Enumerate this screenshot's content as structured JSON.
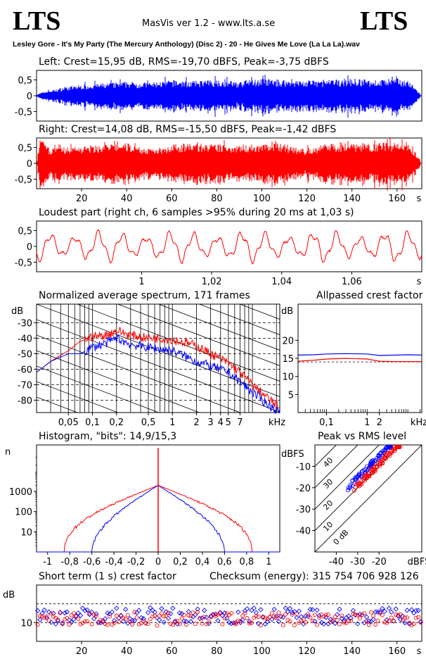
{
  "header": {
    "logo_left": "LTS",
    "logo_right": "LTS",
    "app_title": "MasVis ver 1.2 - www.lts.a.se",
    "filename": "Lesley Gore - It's My Party (The Mercury Anthology) (Disc 2) - 20 - He Gives Me Love (La La La).wav"
  },
  "colors": {
    "left": "#0000ff",
    "right": "#ff0000",
    "axis": "#000000"
  },
  "chart_data": [
    {
      "id": "left-waveform",
      "type": "area",
      "title": "Left: Crest=15,95 dB, RMS=-19,70 dBFS, Peak=-3,75 dBFS",
      "yticks": [
        0.5,
        0,
        -0.5
      ],
      "ytick_labels": [
        "0,5",
        "0",
        "-0,5"
      ],
      "ylim": [
        -0.8,
        0.8
      ],
      "xlim": [
        0,
        171
      ],
      "envelope": {
        "t": [
          0,
          4,
          8,
          12,
          20,
          30,
          40,
          50,
          60,
          70,
          80,
          90,
          100,
          110,
          120,
          130,
          140,
          150,
          160,
          165,
          169,
          171
        ],
        "amp": [
          0.05,
          0.15,
          0.2,
          0.28,
          0.35,
          0.4,
          0.45,
          0.42,
          0.5,
          0.47,
          0.52,
          0.45,
          0.55,
          0.5,
          0.48,
          0.5,
          0.55,
          0.5,
          0.55,
          0.5,
          0.2,
          0.02
        ]
      }
    },
    {
      "id": "right-waveform",
      "type": "area",
      "title": "Right: Crest=14,08 dB, RMS=-15,50 dBFS, Peak=-1,42 dBFS",
      "yticks": [
        0.5,
        0,
        -0.5
      ],
      "ytick_labels": [
        "0,5",
        "0",
        "-0,5"
      ],
      "ylim": [
        -0.8,
        0.8
      ],
      "xlim": [
        0,
        171
      ],
      "xticks": [
        20,
        40,
        60,
        80,
        100,
        120,
        140,
        160
      ],
      "xtick_labels": [
        "20",
        "40",
        "60",
        "80",
        "100",
        "120",
        "140",
        "160"
      ],
      "xunit": "s",
      "envelope": {
        "t": [
          0,
          1,
          5,
          10,
          20,
          30,
          40,
          45,
          50,
          60,
          70,
          80,
          90,
          100,
          110,
          115,
          120,
          130,
          140,
          150,
          160,
          165,
          169,
          171
        ],
        "amp": [
          0.1,
          0.8,
          0.5,
          0.5,
          0.55,
          0.6,
          0.65,
          0.55,
          0.45,
          0.6,
          0.65,
          0.6,
          0.6,
          0.62,
          0.65,
          0.5,
          0.45,
          0.65,
          0.65,
          0.65,
          0.68,
          0.7,
          0.3,
          0.02
        ]
      }
    },
    {
      "id": "loudest-part",
      "type": "line",
      "title": "Loudest part (right ch, 6 samples >95% during 20 ms at 1,03 s)",
      "yticks": [
        0.5,
        0,
        -0.5
      ],
      "ytick_labels": [
        "0,5",
        "0",
        "-0,5"
      ],
      "ylim": [
        -0.8,
        0.8
      ],
      "xlim": [
        0.97,
        1.08
      ],
      "xticks": [
        1,
        1.02,
        1.04,
        1.06
      ],
      "xtick_labels": [
        "1",
        "1,02",
        "1,04",
        "1,06"
      ],
      "xunit": "s",
      "signal": {
        "x_start": 0.97,
        "x_end": 1.08,
        "period": 0.0068,
        "amplitude": 0.55
      }
    },
    {
      "id": "avg-spectrum",
      "type": "line",
      "title": "Normalized average spectrum, 171 frames",
      "ylabel": "dB",
      "yticks": [
        -30,
        -40,
        -50,
        -60,
        -70,
        -80
      ],
      "ytick_labels": [
        "-30",
        "-40",
        "-50",
        "-60",
        "-70",
        "-80"
      ],
      "ylim": [
        -88,
        -18
      ],
      "xscale": "log",
      "xlim": [
        0.02,
        22
      ],
      "xticks": [
        0.05,
        0.1,
        0.2,
        0.5,
        1,
        2,
        3,
        4,
        5,
        7
      ],
      "xtick_labels": [
        "0,05",
        "0,1",
        "0,2",
        "0,5",
        "1",
        "2",
        "3",
        "4",
        "5",
        "7"
      ],
      "xunit": "kHz",
      "series": [
        {
          "color": "#ff0000",
          "x": [
            0.02,
            0.03,
            0.05,
            0.07,
            0.1,
            0.15,
            0.2,
            0.3,
            0.5,
            0.7,
            1,
            1.5,
            2,
            3,
            5,
            7,
            10,
            15,
            22
          ],
          "y": [
            -62,
            -55,
            -48,
            -42,
            -39,
            -38,
            -35,
            -38,
            -40,
            -40,
            -41,
            -43,
            -45,
            -50,
            -56,
            -62,
            -70,
            -78,
            -85
          ]
        },
        {
          "color": "#0000ff",
          "x": [
            0.02,
            0.03,
            0.05,
            0.07,
            0.1,
            0.15,
            0.2,
            0.3,
            0.5,
            0.7,
            1,
            1.5,
            2,
            3,
            5,
            7,
            10,
            15,
            22
          ],
          "y": [
            -62,
            -55,
            -50,
            -50,
            -46,
            -43,
            -40,
            -44,
            -46,
            -47,
            -48,
            -52,
            -55,
            -58,
            -62,
            -68,
            -75,
            -82,
            -88
          ]
        }
      ]
    },
    {
      "id": "allpassed-crest",
      "type": "line",
      "title": "Allpassed crest factor",
      "ylabel": "dB",
      "yticks": [
        20,
        15,
        10,
        5
      ],
      "ytick_labels": [
        "20",
        "15",
        "10",
        "5"
      ],
      "ylim": [
        0,
        30
      ],
      "xscale": "log",
      "xlim": [
        0.02,
        22
      ],
      "xticks": [
        0.1,
        1,
        2
      ],
      "xtick_labels": [
        "0,1",
        "1",
        "2"
      ],
      "xunit": "kHz",
      "series": [
        {
          "color": "#0000ff",
          "x": [
            0.02,
            0.05,
            0.1,
            0.3,
            1,
            2,
            5,
            10,
            22
          ],
          "y": [
            15.9,
            16,
            16.2,
            16.3,
            16.2,
            15.8,
            15.9,
            16,
            15.9
          ]
        },
        {
          "color": "#ff0000",
          "x": [
            0.02,
            0.05,
            0.1,
            0.3,
            1,
            2,
            5,
            10,
            22
          ],
          "y": [
            14.2,
            14.5,
            14.8,
            15,
            14.8,
            14.2,
            14.1,
            14.1,
            14.1
          ]
        }
      ]
    },
    {
      "id": "histogram",
      "type": "line",
      "title": "Histogram, \"bits\": 14,9/15,3",
      "ylabel": "n",
      "yscale": "log",
      "yticks": [
        1000,
        100,
        10
      ],
      "ytick_labels": [
        "1000",
        "100",
        "10"
      ],
      "ylim": [
        1,
        200000
      ],
      "xlim": [
        -1.1,
        1.1
      ],
      "xticks": [
        -1,
        -0.8,
        -0.6,
        -0.4,
        -0.2,
        0,
        0.2,
        0.4,
        0.6,
        0.8,
        1
      ],
      "xtick_labels": [
        "-1",
        "-0,8",
        "-0,6",
        "-0,4",
        "-0,2",
        "0",
        "0,2",
        "0,4",
        "0,6",
        "0,8",
        "1"
      ],
      "series": [
        {
          "color": "#ff0000",
          "half_width": 0.85,
          "peak": 2000,
          "decay": 5
        },
        {
          "color": "#0000ff",
          "half_width": 0.6,
          "peak": 2000,
          "decay": 8
        }
      ]
    },
    {
      "id": "peak-vs-rms",
      "type": "scatter",
      "title": "Peak vs RMS level",
      "ylabel": "dBFS",
      "yticks": [
        -10,
        -20,
        -30,
        -40
      ],
      "ytick_labels": [
        "-10",
        "-20",
        "-30",
        "-40"
      ],
      "ylim": [
        -50,
        0
      ],
      "xlim": [
        -50,
        0
      ],
      "xticks": [
        -40,
        -30,
        -20
      ],
      "xtick_labels": [
        "-40",
        "-30",
        "-20"
      ],
      "xunit": "dBFS",
      "diag_labels": [
        "40",
        "30",
        "20",
        "10",
        "0 dB"
      ],
      "series": [
        {
          "color": "#0000ff",
          "cloud": {
            "x0": -35,
            "x1": -14,
            "offset": 14.5
          }
        },
        {
          "color": "#ff0000",
          "cloud": {
            "x0": -32,
            "x1": -10,
            "offset": 11
          }
        }
      ]
    },
    {
      "id": "short-term-crest",
      "type": "scatter",
      "title": "Short term (1 s) crest factor",
      "checksum": "Checksum (energy):   315 754 706 928 126",
      "ylabel": "dB",
      "yticks": [
        10
      ],
      "ytick_labels": [
        "10"
      ],
      "ylim": [
        5,
        20
      ],
      "xlim": [
        0,
        171
      ],
      "xticks": [
        20,
        40,
        60,
        80,
        100,
        120,
        140,
        160
      ],
      "xtick_labels": [
        "20",
        "40",
        "60",
        "80",
        "100",
        "120",
        "140",
        "160"
      ],
      "xunit": "s",
      "series": [
        {
          "color": "#0000ff",
          "count": 171,
          "mean": 11.8,
          "spread": 2.2
        },
        {
          "color": "#ff0000",
          "count": 171,
          "mean": 11.0,
          "spread": 1.8
        }
      ]
    }
  ]
}
